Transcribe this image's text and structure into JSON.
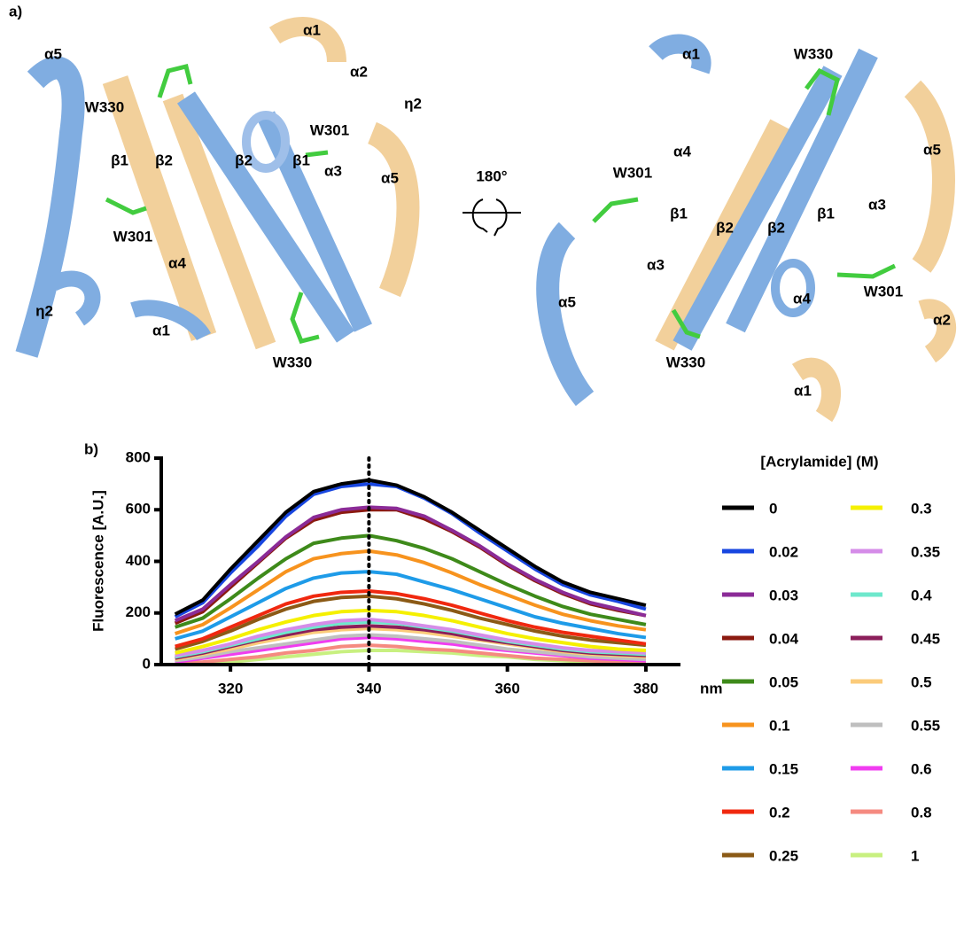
{
  "panel_a": {
    "label": "a)",
    "rotation": "180°",
    "annotations": [
      "α5",
      "W330",
      "β1",
      "β2",
      "β2",
      "β1",
      "W301",
      "α3",
      "α5",
      "α1",
      "α2",
      "η2",
      "W301",
      "α4",
      "η2",
      "α1",
      "W330",
      "α1",
      "W330",
      "α5",
      "α4",
      "W301",
      "β1",
      "β2",
      "β2",
      "β1",
      "α3",
      "α3",
      "α5",
      "α4",
      "W301",
      "α2",
      "W330",
      "α1"
    ]
  },
  "chart_data": {
    "type": "line",
    "panel_label": "b)",
    "y_label": "Fluorescence [A.U.]",
    "x_label": "nm",
    "legend_title": "[Acrylamide] (M)",
    "xlim": [
      310,
      385
    ],
    "xticks": [
      320,
      340,
      360,
      380
    ],
    "ylim": [
      0,
      800
    ],
    "yticks": [
      0,
      200,
      400,
      600,
      800
    ],
    "reference_line": 340,
    "x": [
      312,
      316,
      320,
      324,
      328,
      332,
      336,
      340,
      344,
      348,
      352,
      356,
      360,
      364,
      368,
      372,
      376,
      380
    ],
    "series": [
      {
        "name": "0",
        "color": "#000000",
        "values": [
          195,
          250,
          370,
          480,
          590,
          670,
          700,
          715,
          695,
          650,
          590,
          520,
          450,
          380,
          320,
          280,
          255,
          230
        ]
      },
      {
        "name": "0.02",
        "color": "#1846e0",
        "values": [
          185,
          240,
          355,
          460,
          575,
          660,
          690,
          700,
          690,
          645,
          585,
          510,
          440,
          370,
          310,
          270,
          245,
          215
        ]
      },
      {
        "name": "0.03",
        "color": "#8b2b97",
        "values": [
          170,
          215,
          310,
          400,
          495,
          570,
          600,
          610,
          605,
          575,
          520,
          460,
          390,
          330,
          280,
          240,
          215,
          190
        ]
      },
      {
        "name": "0.04",
        "color": "#8b1a10",
        "values": [
          160,
          205,
          300,
          395,
          490,
          560,
          590,
          600,
          600,
          565,
          515,
          455,
          385,
          325,
          275,
          235,
          210,
          190
        ]
      },
      {
        "name": "0.05",
        "color": "#3e8a1a",
        "values": [
          145,
          180,
          255,
          335,
          410,
          470,
          490,
          500,
          480,
          450,
          410,
          360,
          310,
          265,
          225,
          195,
          175,
          155
        ]
      },
      {
        "name": "0.1",
        "color": "#f7931e",
        "values": [
          120,
          155,
          220,
          290,
          360,
          410,
          430,
          440,
          425,
          395,
          355,
          310,
          270,
          230,
          195,
          170,
          150,
          135
        ]
      },
      {
        "name": "0.15",
        "color": "#1e9be8",
        "values": [
          100,
          130,
          185,
          240,
          295,
          335,
          355,
          360,
          350,
          320,
          290,
          255,
          220,
          185,
          160,
          140,
          120,
          105
        ]
      },
      {
        "name": "0.2",
        "color": "#f0280f",
        "values": [
          70,
          100,
          145,
          190,
          235,
          265,
          280,
          285,
          275,
          255,
          230,
          200,
          170,
          145,
          125,
          110,
          95,
          80
        ]
      },
      {
        "name": "0.25",
        "color": "#8b5a16",
        "values": [
          60,
          90,
          130,
          175,
          215,
          245,
          260,
          265,
          255,
          235,
          210,
          180,
          155,
          130,
          110,
          95,
          85,
          75
        ]
      },
      {
        "name": "0.3",
        "color": "#f5f000",
        "values": [
          45,
          70,
          100,
          135,
          165,
          190,
          205,
          210,
          205,
          190,
          170,
          145,
          120,
          100,
          85,
          70,
          60,
          55
        ]
      },
      {
        "name": "0.35",
        "color": "#d58ce8",
        "values": [
          35,
          55,
          80,
          110,
          135,
          155,
          170,
          175,
          165,
          150,
          135,
          115,
          95,
          80,
          65,
          55,
          50,
          45
        ]
      },
      {
        "name": "0.4",
        "color": "#6ee8cc",
        "values": [
          30,
          50,
          75,
          100,
          125,
          145,
          160,
          165,
          160,
          145,
          130,
          110,
          90,
          75,
          60,
          50,
          45,
          40
        ]
      },
      {
        "name": "0.45",
        "color": "#8b1e5a",
        "values": [
          25,
          45,
          70,
          95,
          115,
          135,
          145,
          150,
          145,
          135,
          120,
          100,
          85,
          70,
          55,
          45,
          40,
          35
        ]
      },
      {
        "name": "0.5",
        "color": "#fbcb7a",
        "values": [
          20,
          40,
          60,
          85,
          105,
          125,
          135,
          140,
          135,
          125,
          110,
          95,
          80,
          65,
          50,
          40,
          35,
          30
        ]
      },
      {
        "name": "0.55",
        "color": "#bfbfbf",
        "values": [
          15,
          30,
          50,
          65,
          80,
          95,
          110,
          115,
          110,
          100,
          90,
          75,
          60,
          50,
          40,
          30,
          25,
          20
        ]
      },
      {
        "name": "0.6",
        "color": "#f03cf0",
        "values": [
          10,
          25,
          40,
          55,
          70,
          85,
          100,
          105,
          100,
          90,
          80,
          65,
          55,
          45,
          35,
          25,
          20,
          15
        ]
      },
      {
        "name": "0.8",
        "color": "#f58a80",
        "values": [
          5,
          10,
          20,
          30,
          45,
          55,
          70,
          75,
          70,
          60,
          55,
          45,
          35,
          25,
          20,
          15,
          10,
          5
        ]
      },
      {
        "name": "1",
        "color": "#c8f080",
        "values": [
          0,
          5,
          10,
          20,
          30,
          40,
          50,
          55,
          55,
          50,
          45,
          35,
          30,
          20,
          15,
          10,
          5,
          5
        ]
      }
    ]
  }
}
